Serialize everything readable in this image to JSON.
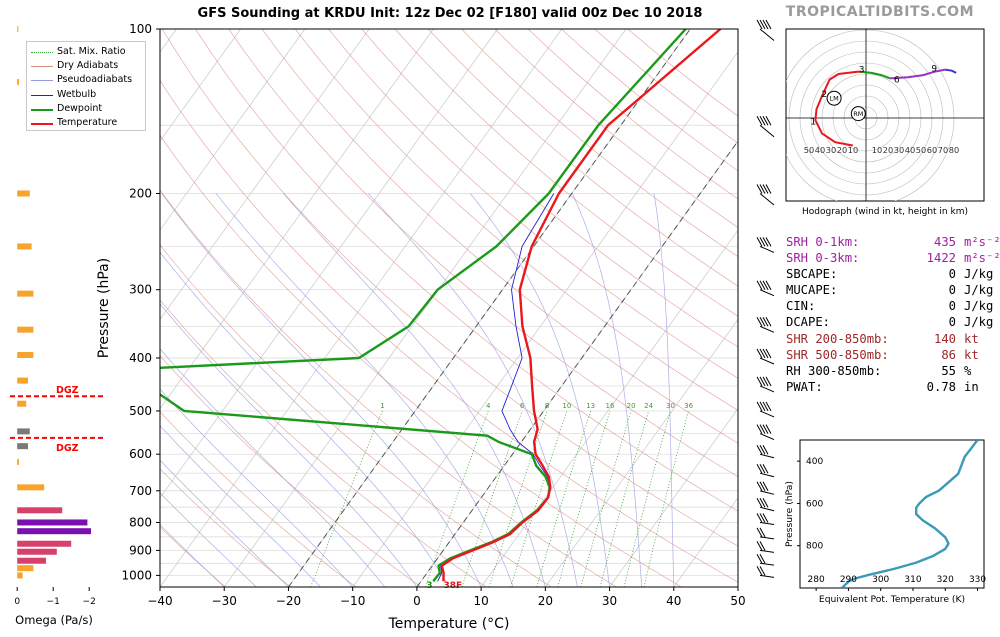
{
  "title": "GFS Sounding at KRDU Init: 12z Dec 02 [F180] valid 00z Dec 10 2018",
  "brand": "TROPICALTIDBITS.COM",
  "colors": {
    "temperature": "#e8181c",
    "dewpoint": "#1a9a1a",
    "wetbulb": "#2020d8",
    "dry_adiabat": "#d88a80",
    "pseudoadiabat": "#9a9ae0",
    "mixing_ratio": "#3aa03a",
    "dgz": "#ff0000",
    "srh": "#a020a0",
    "shear": "#a02828",
    "theta_e": "#3a9ab8",
    "hodo_low": "#e8181c",
    "hodo_mid": "#1a9a1a",
    "hodo_high": "#9a30c8",
    "hodo_top": "#3a3ad8",
    "omega_orange": "#f7a42a",
    "omega_pink": "#d8406a",
    "omega_purple": "#7a10b0",
    "omega_gray": "#7a7a7a"
  },
  "legend": [
    {
      "label": "Sat. Mix. Ratio",
      "style": "dotted",
      "color": "#3aa03a"
    },
    {
      "label": "Dry Adiabats",
      "style": "solid-thin",
      "color": "#d88a80"
    },
    {
      "label": "Pseudoadiabats",
      "style": "solid-thin",
      "color": "#9a9ae0"
    },
    {
      "label": "Wetbulb",
      "style": "solid-thin",
      "color": "#2020d8"
    },
    {
      "label": "Dewpoint",
      "style": "solid-thick",
      "color": "#1a9a1a"
    },
    {
      "label": "Temperature",
      "style": "solid-thick",
      "color": "#e8181c"
    }
  ],
  "params": [
    {
      "label": "SRH 0-1km:",
      "value": "435",
      "unit": "m²s⁻²",
      "color": "#a020a0"
    },
    {
      "label": "SRH 0-3km:",
      "value": "1422",
      "unit": "m²s⁻²",
      "color": "#a020a0"
    },
    {
      "label": "SBCAPE:",
      "value": "0",
      "unit": "J/kg",
      "color": "#000000"
    },
    {
      "label": "MUCAPE:",
      "value": "0",
      "unit": "J/kg",
      "color": "#000000"
    },
    {
      "label": "CIN:",
      "value": "0",
      "unit": "J/kg",
      "color": "#000000"
    },
    {
      "label": "DCAPE:",
      "value": "0",
      "unit": "J/kg",
      "color": "#000000"
    },
    {
      "label": "SHR 200-850mb:",
      "value": "140",
      "unit": "kt",
      "color": "#a02828"
    },
    {
      "label": "SHR 500-850mb:",
      "value": "86",
      "unit": "kt",
      "color": "#a02828"
    },
    {
      "label": "RH 300-850mb:",
      "value": "55",
      "unit": "%",
      "color": "#000000"
    },
    {
      "label": "PWAT:",
      "value": "0.78",
      "unit": "in",
      "color": "#000000"
    }
  ],
  "chart_data": [
    {
      "type": "line",
      "name": "skew-t",
      "xlabel": "Temperature (°C)",
      "ylabel": "Pressure (hPa)",
      "xlim": [
        -40,
        50
      ],
      "ylim": [
        1050,
        100
      ],
      "y_scale": "log",
      "x_ticks": [
        -40,
        -30,
        -20,
        -10,
        0,
        10,
        20,
        30,
        40,
        50
      ],
      "y_ticks": [
        100,
        200,
        300,
        400,
        500,
        600,
        700,
        800,
        900,
        1000
      ],
      "mixing_ratio_labels": [
        "1",
        "4",
        "6",
        "8",
        "10",
        "13",
        "16",
        "20",
        "24",
        "30",
        "36"
      ],
      "mixing_ratio_values": [
        1,
        4,
        6,
        8,
        10,
        13,
        16,
        20,
        24,
        30,
        36
      ],
      "dgz": [
        560,
        470
      ],
      "dgz_label": "DGZ",
      "surface_dewpoint_label": "3",
      "surface_temp_label": "38F",
      "series": [
        {
          "name": "Temperature",
          "p": [
            1025,
            990,
            960,
            930,
            900,
            870,
            840,
            800,
            760,
            720,
            690,
            660,
            630,
            600,
            570,
            540,
            500,
            450,
            400,
            350,
            300,
            250,
            200,
            180,
            150,
            100
          ],
          "t": [
            3.5,
            2.6,
            1.5,
            2.4,
            4.6,
            6.8,
            8.6,
            9.2,
            10.3,
            10.4,
            9.6,
            8.2,
            6.0,
            3.6,
            2.0,
            1.1,
            -1.5,
            -4.6,
            -8.0,
            -12.8,
            -17.3,
            -20.3,
            -22.0,
            -22.0,
            -22.0,
            -15.3
          ]
        },
        {
          "name": "Dewpoint",
          "p": [
            1025,
            990,
            960,
            930,
            900,
            870,
            840,
            800,
            760,
            720,
            690,
            660,
            630,
            600,
            570,
            555,
            500,
            420,
            400,
            350,
            300,
            250,
            200,
            150,
            100
          ],
          "t": [
            1.9,
            2.0,
            1.0,
            2.0,
            4.2,
            6.5,
            8.3,
            9.0,
            10.1,
            10.4,
            9.5,
            7.7,
            5.0,
            3.0,
            -3.5,
            -6.0,
            -56.0,
            -70.0,
            -34.7,
            -30.5,
            -30.1,
            -25.8,
            -23.6,
            -23.5,
            -20.7
          ]
        },
        {
          "name": "Wetbulb",
          "p": [
            1025,
            990,
            960,
            930,
            900,
            870,
            840,
            800,
            760,
            720,
            690,
            660,
            630,
            600,
            570,
            540,
            500,
            450,
            400,
            350,
            300,
            250,
            200
          ],
          "t": [
            2.6,
            2.3,
            1.3,
            2.2,
            4.4,
            6.6,
            8.4,
            9.1,
            10.2,
            10.4,
            9.5,
            8.0,
            5.6,
            3.2,
            -0.5,
            -3.2,
            -6.5,
            -7.8,
            -9.3,
            -13.8,
            -18.6,
            -21.8,
            -22.8
          ]
        }
      ]
    },
    {
      "type": "bar",
      "name": "omega",
      "xlabel": "Omega (Pa/s)",
      "xlim": [
        0.2,
        -2.3
      ],
      "x_ticks": [
        0,
        -1,
        -2
      ],
      "x_tick_labels": [
        "0",
        "−1",
        "−2"
      ],
      "p": [
        1000,
        970,
        940,
        905,
        875,
        830,
        800,
        760,
        690,
        620,
        580,
        545,
        485,
        440,
        395,
        355,
        305,
        250,
        200,
        125,
        100
      ],
      "values": [
        -0.15,
        -0.45,
        -0.8,
        -1.1,
        -1.5,
        -2.05,
        -1.95,
        -1.25,
        -0.75,
        -0.05,
        -0.3,
        -0.35,
        -0.25,
        -0.3,
        -0.45,
        -0.45,
        -0.45,
        -0.4,
        -0.35,
        -0.05,
        -0.03
      ],
      "colors": [
        "omega_orange",
        "omega_orange",
        "omega_pink",
        "omega_pink",
        "omega_pink",
        "omega_purple",
        "omega_purple",
        "omega_pink",
        "omega_orange",
        "omega_orange",
        "omega_gray",
        "omega_gray",
        "omega_orange",
        "omega_orange",
        "omega_orange",
        "omega_orange",
        "omega_orange",
        "omega_orange",
        "omega_orange",
        "omega_orange",
        "omega_orange"
      ]
    },
    {
      "type": "scatter",
      "name": "hodograph",
      "xlabel": "Hodograph (wind in kt, height in km)",
      "axis_ticks": [
        10,
        20,
        30,
        40,
        50,
        60,
        70,
        80
      ],
      "left_tick_labels": [
        "50",
        "40",
        "30",
        "20",
        "10"
      ],
      "right_tick_labels": [
        "10",
        "20",
        "30",
        "40",
        "50",
        "60",
        "70",
        "80"
      ],
      "height_labels": [
        "1",
        "2",
        "3",
        "6",
        "9"
      ],
      "markers": [
        "LM",
        "RM"
      ],
      "segments": [
        {
          "color": "hodo_low",
          "points": [
            [
              -12,
              -25
            ],
            [
              -28,
              -22
            ],
            [
              -40,
              -14
            ],
            [
              -46,
              -2
            ],
            [
              -45,
              8
            ],
            [
              -40,
              20
            ],
            [
              -33,
              35
            ],
            [
              -25,
              40
            ],
            [
              -8,
              42
            ],
            [
              -4,
              42
            ]
          ]
        },
        {
          "color": "hodo_mid",
          "points": [
            [
              -4,
              42
            ],
            [
              5,
              41
            ],
            [
              14,
              39
            ],
            [
              22,
              36
            ]
          ]
        },
        {
          "color": "hodo_high",
          "points": [
            [
              22,
              36
            ],
            [
              38,
              37
            ],
            [
              52,
              39
            ],
            [
              62,
              42
            ],
            [
              72,
              44
            ]
          ]
        },
        {
          "color": "hodo_top",
          "points": [
            [
              72,
              44
            ],
            [
              78,
              43
            ],
            [
              82,
              41
            ]
          ]
        }
      ],
      "height_label_points": [
        [
          -48,
          -3
        ],
        [
          -38,
          22
        ],
        [
          -4,
          44
        ],
        [
          28,
          35
        ],
        [
          62,
          45
        ]
      ],
      "marker_points": [
        [
          -29,
          18
        ],
        [
          -7,
          4
        ]
      ]
    },
    {
      "type": "line",
      "name": "theta-e",
      "xlabel": "Equivalent Pot. Temperature (K)",
      "ylabel": "Pressure (hPa)",
      "xlim": [
        275,
        332
      ],
      "ylim": [
        1000,
        300
      ],
      "x_ticks": [
        280,
        290,
        300,
        310,
        320,
        330
      ],
      "y_ticks": [
        400,
        600,
        800
      ],
      "p": [
        1000,
        985,
        970,
        955,
        935,
        910,
        880,
        850,
        815,
        790,
        760,
        720,
        680,
        650,
        620,
        600,
        570,
        540,
        500,
        460,
        420,
        380,
        340,
        300
      ],
      "theta_e": [
        288,
        289,
        290,
        292,
        297,
        304,
        311,
        316,
        320,
        321,
        320,
        317,
        313,
        311,
        311,
        312,
        314,
        318,
        321,
        324,
        325,
        326,
        328,
        330
      ]
    }
  ]
}
